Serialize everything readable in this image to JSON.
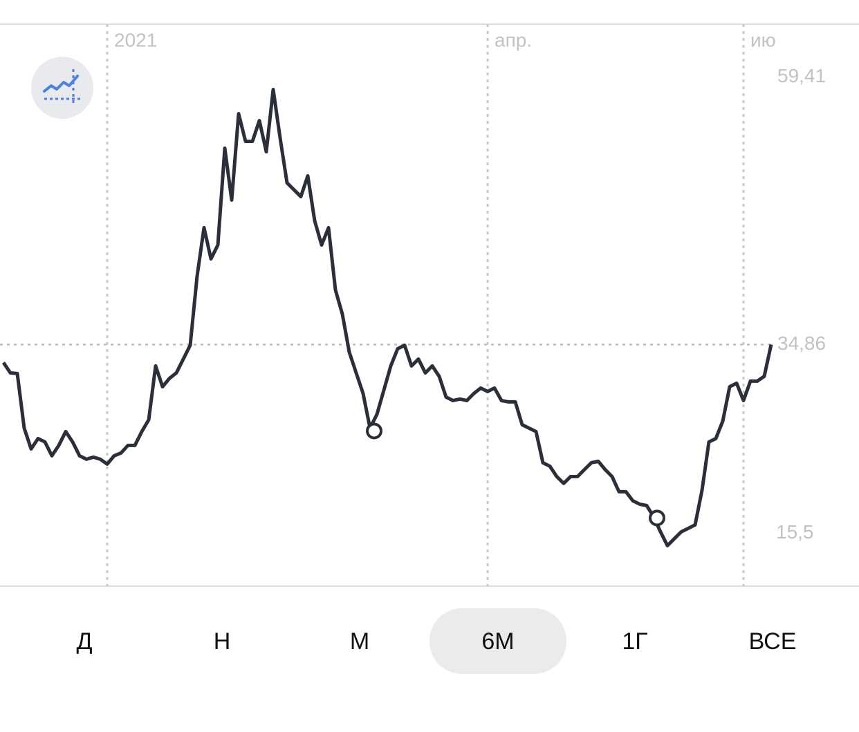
{
  "chart_data": {
    "type": "line",
    "categories": [
      null,
      null,
      null,
      null,
      null,
      null,
      null,
      null,
      null,
      null,
      null,
      null,
      null,
      null,
      null,
      "2021",
      null,
      null,
      null,
      null,
      null,
      null,
      null,
      null,
      null,
      null,
      null,
      null,
      null,
      null,
      null,
      null,
      null,
      null,
      null,
      null,
      null,
      null,
      null,
      null,
      null,
      null,
      null,
      null,
      null,
      null,
      null,
      null,
      null,
      null,
      null,
      null,
      null,
      null,
      null,
      null,
      null,
      null,
      null,
      null,
      null,
      null,
      null,
      null,
      null,
      null,
      null,
      null,
      null,
      null,
      "апр.",
      null,
      null,
      null,
      null,
      null,
      null,
      null,
      null,
      null,
      null,
      null,
      null,
      null,
      null,
      null,
      null,
      null,
      null,
      null,
      null,
      null,
      null,
      null,
      null,
      null,
      null,
      null,
      null,
      null,
      null,
      null,
      null,
      null,
      null,
      null,
      null,
      "ию",
      null,
      null,
      null,
      null
    ],
    "series": [
      {
        "color": "#2b2f3a",
        "values": [
          33.13,
          32.13,
          32.07,
          26.81,
          24.81,
          25.81,
          25.48,
          24.15,
          25.15,
          26.48,
          25.48,
          24.15,
          23.82,
          24.02,
          23.82,
          23.35,
          24.15,
          24.42,
          25.15,
          25.15,
          26.48,
          27.61,
          32.8,
          30.8,
          31.6,
          32.13,
          33.46,
          34.79,
          41.45,
          46.11,
          43.11,
          44.44,
          53.76,
          48.77,
          57.08,
          54.42,
          54.42,
          56.42,
          53.42,
          59.41,
          54.75,
          50.43,
          49.76,
          49.1,
          51.1,
          46.77,
          44.44,
          46.11,
          40.12,
          37.79,
          34.13,
          32.13,
          30.14,
          26.81,
          28.14,
          30.47,
          32.8,
          34.46,
          34.79,
          32.8,
          33.46,
          32.13,
          32.8,
          31.8,
          29.8,
          29.47,
          29.61,
          29.47,
          30.14,
          30.67,
          30.34,
          30.67,
          29.47,
          29.34,
          29.34,
          27.14,
          26.81,
          26.48,
          23.48,
          23.15,
          22.15,
          21.49,
          22.15,
          22.15,
          22.82,
          23.48,
          23.62,
          22.82,
          22.15,
          20.69,
          20.69,
          19.82,
          19.49,
          19.36,
          18.29,
          16.83,
          15.5,
          16.17,
          16.83,
          17.16,
          17.5,
          20.82,
          25.48,
          25.81,
          27.48,
          30.8,
          31.14,
          29.47,
          31.34,
          31.34,
          31.8,
          34.86
        ]
      }
    ],
    "markers": [
      {
        "x": 53.6,
        "value": 26.54
      },
      {
        "x": 94.5,
        "value": 18.16
      }
    ],
    "ylim": [
      11.6,
      65.7
    ],
    "yticks": [
      {
        "value": 59.41,
        "label": "59,41"
      },
      {
        "value": 34.86,
        "label": "34,86"
      },
      {
        "value": 15.5,
        "label": "15,5"
      }
    ]
  },
  "period_buttons": [
    "Д",
    "Н",
    "М",
    "6М",
    "1Г",
    "ВСЕ"
  ],
  "selected_period": 3
}
